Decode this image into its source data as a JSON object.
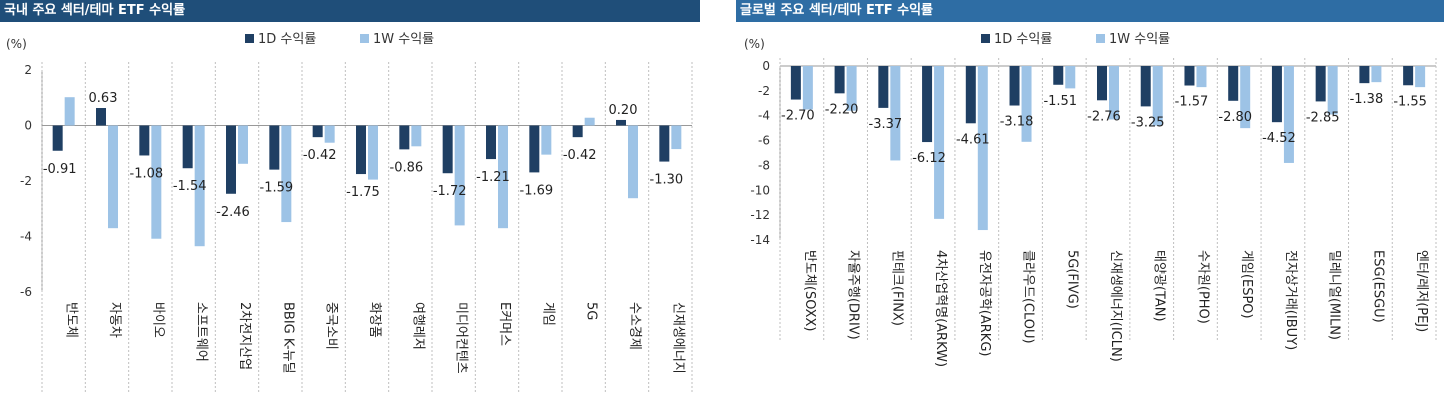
{
  "colors": {
    "d1": "#1f3f63",
    "w1": "#9dc3e6",
    "axis": "#999999",
    "grid": "#bfbfbf"
  },
  "chart_data": [
    {
      "type": "bar",
      "panel_title": "국내 주요 섹터/테마 ETF 수익률",
      "unit_label": "(%)",
      "categories": [
        "반도체",
        "자동차",
        "바이오",
        "소프트웨어",
        "2차전지산업",
        "BBIG K-뉴딜",
        "중국소비",
        "화장품",
        "여행레저",
        "미디어컨텐츠",
        "E커머스",
        "게임",
        "5G",
        "수소경제",
        "신재생에너지"
      ],
      "series": [
        {
          "name": "1D 수익률",
          "values": [
            -0.91,
            0.63,
            -1.08,
            -1.54,
            -2.46,
            -1.59,
            -0.42,
            -1.75,
            -0.86,
            -1.72,
            -1.21,
            -1.69,
            -0.42,
            0.2,
            -1.3
          ]
        },
        {
          "name": "1W 수익률",
          "values": [
            1.02,
            -3.7,
            -4.08,
            -4.35,
            -1.38,
            -3.48,
            -0.62,
            -1.95,
            -0.75,
            -3.6,
            -3.7,
            -1.05,
            0.28,
            -2.62,
            -0.85
          ]
        }
      ],
      "data_labels": [
        "-0.91",
        "0.63",
        "-1.08",
        "-1.54",
        "-2.46",
        "-1.59",
        "-0.42",
        "-1.75",
        "-0.86",
        "-1.72",
        "-1.21",
        "-1.69",
        "-0.42",
        "0.20",
        "-1.30"
      ],
      "ylim": [
        -6,
        2
      ],
      "yticks": [
        "2",
        "0",
        "-2",
        "-4",
        "-6"
      ]
    },
    {
      "type": "bar",
      "panel_title": "글로벌 주요 섹터/테마 ETF 수익률",
      "unit_label": "(%)",
      "categories": [
        "반도체(SOXX)",
        "자율주행(DRIV)",
        "핀테크(FINX)",
        "4차산업혁명(ARKW)",
        "유전자공학(ARKG)",
        "클라우드(CLOU)",
        "5G(FIVG)",
        "신재생에너지(ICLN)",
        "태양광(TAN)",
        "수자원(PHO)",
        "게임(ESPO)",
        "전자상거래(IBUY)",
        "밀레니얼(MILN)",
        "ESG(ESGU)",
        "엔터/레저(PEJ)"
      ],
      "series": [
        {
          "name": "1D 수익률",
          "values": [
            -2.7,
            -2.2,
            -3.37,
            -6.12,
            -4.61,
            -3.18,
            -1.51,
            -2.76,
            -3.25,
            -1.57,
            -2.8,
            -4.52,
            -2.85,
            -1.38,
            -1.55
          ]
        },
        {
          "name": "1W 수익률",
          "values": [
            -3.5,
            -3.6,
            -7.6,
            -12.3,
            -13.2,
            -6.1,
            -1.8,
            -4.3,
            -4.8,
            -1.7,
            -5.0,
            -7.8,
            -3.9,
            -1.3,
            -1.7
          ]
        }
      ],
      "data_labels": [
        "-2.70",
        "-2.20",
        "-3.37",
        "-6.12",
        "-4.61",
        "-3.18",
        "-1.51",
        "-2.76",
        "-3.25",
        "-1.57",
        "-2.80",
        "-4.52",
        "-2.85",
        "-1.38",
        "-1.55"
      ],
      "ylim": [
        -14,
        0
      ],
      "yticks": [
        "0",
        "-2",
        "-4",
        "-6",
        "-8",
        "-10",
        "-12",
        "-14"
      ]
    }
  ]
}
